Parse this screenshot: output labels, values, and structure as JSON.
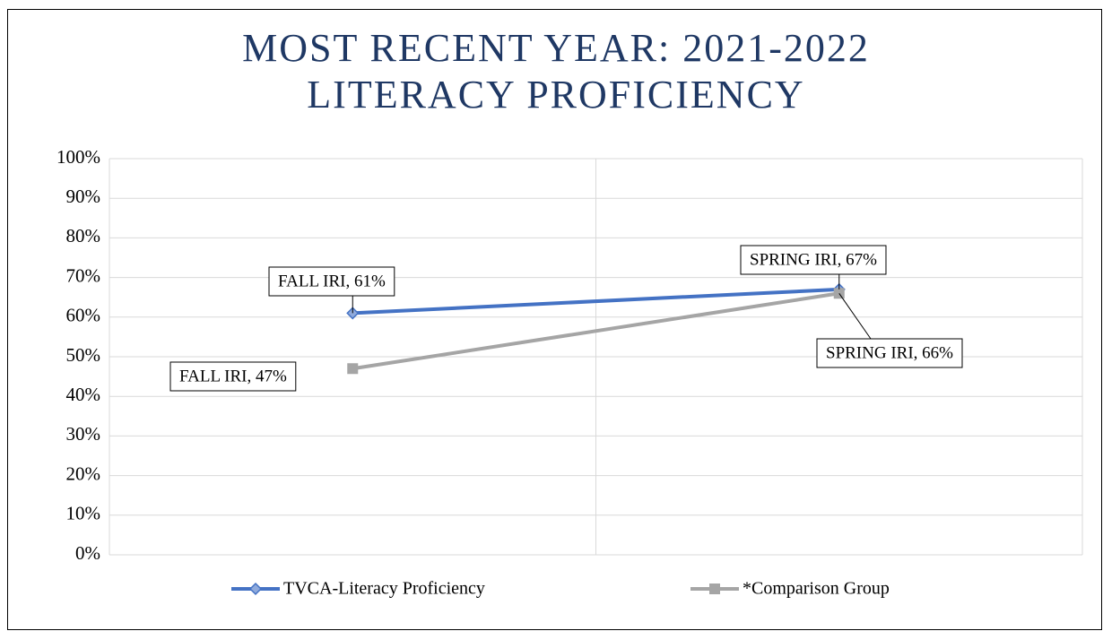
{
  "chart_data": {
    "type": "line",
    "title": [
      "MOST RECENT YEAR: 2021-2022",
      "LITERACY PROFICIENCY"
    ],
    "categories": [
      null,
      null
    ],
    "series": [
      {
        "name": "TVCA-Literacy Proficiency",
        "color": "#4472c4",
        "marker": "diamond",
        "values": [
          61,
          67
        ],
        "value_labels": [
          "FALL IRI, 61%",
          "SPRING IRI, 67%"
        ]
      },
      {
        "name": "*Comparison Group",
        "color": "#a5a5a5",
        "marker": "square",
        "values": [
          47,
          66
        ],
        "value_labels": [
          "FALL IRI, 47%",
          "SPRING IRI, 66%"
        ]
      }
    ],
    "ylim": [
      0,
      100
    ],
    "yticks": [
      {
        "value": 0,
        "label": "0%"
      },
      {
        "value": 10,
        "label": "10%"
      },
      {
        "value": 20,
        "label": "20%"
      },
      {
        "value": 30,
        "label": "30%"
      },
      {
        "value": 40,
        "label": "40%"
      },
      {
        "value": 50,
        "label": "50%"
      },
      {
        "value": 60,
        "label": "60%"
      },
      {
        "value": 70,
        "label": "70%"
      },
      {
        "value": 80,
        "label": "80%"
      },
      {
        "value": 90,
        "label": "90%"
      },
      {
        "value": 100,
        "label": "100%"
      }
    ],
    "grid": true,
    "legend": "bottom"
  }
}
